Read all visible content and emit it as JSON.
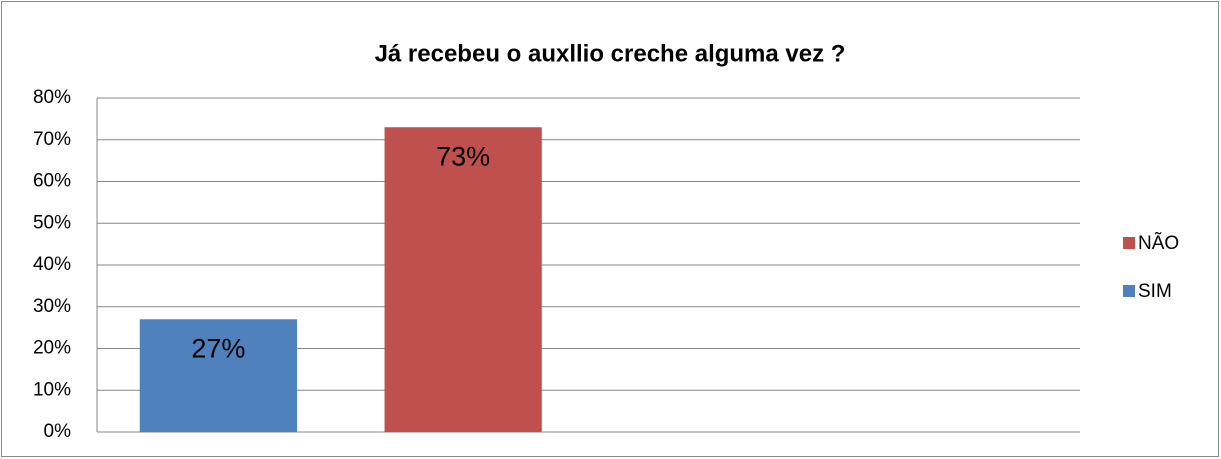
{
  "chart_data": {
    "type": "bar",
    "title": "Já recebeu o auxllio creche alguma vez ?",
    "categories": [
      null
    ],
    "series": [
      {
        "name": "SIM",
        "color": "#4f81bd",
        "values": [
          27
        ],
        "value_labels": [
          "27%"
        ]
      },
      {
        "name": "NÃO",
        "color": "#c0504d",
        "values": [
          73
        ],
        "value_labels": [
          "73%"
        ]
      }
    ],
    "ylim": [
      0,
      80
    ],
    "yticks": [
      {
        "value": 0,
        "label": "0%"
      },
      {
        "value": 10,
        "label": "10%"
      },
      {
        "value": 20,
        "label": "20%"
      },
      {
        "value": 30,
        "label": "30%"
      },
      {
        "value": 40,
        "label": "40%"
      },
      {
        "value": 50,
        "label": "50%"
      },
      {
        "value": 60,
        "label": "60%"
      },
      {
        "value": 70,
        "label": "70%"
      },
      {
        "value": 80,
        "label": "80%"
      }
    ],
    "grid": true,
    "legend": "right"
  }
}
